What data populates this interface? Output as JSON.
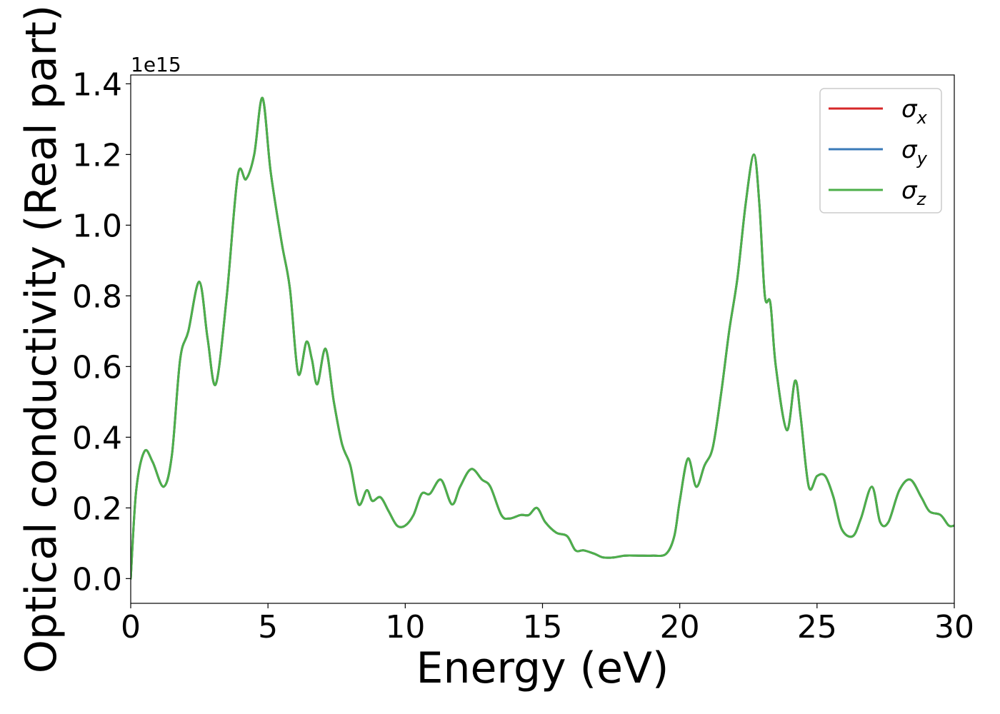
{
  "chart_data": {
    "type": "line",
    "title": "",
    "xlabel": "Energy (eV)",
    "ylabel": "Optical conductivity (Real part)",
    "y_offset_label": "1e15",
    "xlim": [
      0,
      30
    ],
    "ylim": [
      -0.07,
      1.425
    ],
    "x_ticks": [
      0,
      5,
      10,
      15,
      20,
      25,
      30
    ],
    "x_tick_labels": [
      "0",
      "5",
      "10",
      "15",
      "20",
      "25",
      "30"
    ],
    "y_ticks": [
      0.0,
      0.2,
      0.4,
      0.6,
      0.8,
      1.0,
      1.2,
      1.4
    ],
    "y_tick_labels": [
      "0.0",
      "0.2",
      "0.4",
      "0.6",
      "0.8",
      "1.0",
      "1.2",
      "1.4"
    ],
    "grid": false,
    "legend_position": "top-right",
    "series": [
      {
        "name": "σx",
        "symbol": "σ",
        "subscript": "x",
        "color": "#d62728",
        "x": [
          0,
          0.2,
          0.5,
          0.8,
          1.2,
          1.5,
          1.8,
          2.1,
          2.5,
          2.8,
          3.1,
          3.5,
          3.9,
          4.2,
          4.5,
          4.8,
          5.1,
          5.5,
          5.8,
          6.1,
          6.4,
          6.6,
          6.8,
          7.1,
          7.4,
          7.7,
          8.0,
          8.3,
          8.6,
          8.8,
          9.1,
          9.4,
          9.7,
          10.0,
          10.3,
          10.6,
          10.9,
          11.3,
          11.7,
          12.0,
          12.4,
          12.8,
          13.1,
          13.5,
          13.8,
          14.2,
          14.5,
          14.8,
          15.1,
          15.5,
          15.9,
          16.2,
          16.5,
          16.9,
          17.2,
          17.6,
          18.0,
          18.5,
          19.0,
          19.5,
          19.8,
          20.0,
          20.3,
          20.6,
          20.9,
          21.2,
          21.5,
          21.8,
          22.1,
          22.4,
          22.7,
          22.9,
          23.1,
          23.3,
          23.5,
          23.9,
          24.2,
          24.4,
          24.7,
          25.0,
          25.3,
          25.6,
          25.9,
          26.3,
          26.6,
          27.0,
          27.3,
          27.6,
          28.0,
          28.4,
          28.8,
          29.1,
          29.5,
          29.8,
          30.0
        ],
        "y": [
          0.0,
          0.25,
          0.36,
          0.33,
          0.26,
          0.35,
          0.62,
          0.7,
          0.84,
          0.68,
          0.55,
          0.8,
          1.14,
          1.13,
          1.2,
          1.36,
          1.15,
          0.95,
          0.82,
          0.58,
          0.67,
          0.62,
          0.55,
          0.65,
          0.5,
          0.38,
          0.32,
          0.21,
          0.25,
          0.22,
          0.23,
          0.19,
          0.15,
          0.15,
          0.18,
          0.24,
          0.24,
          0.28,
          0.21,
          0.26,
          0.31,
          0.28,
          0.26,
          0.18,
          0.17,
          0.18,
          0.18,
          0.2,
          0.16,
          0.13,
          0.12,
          0.08,
          0.08,
          0.07,
          0.06,
          0.06,
          0.065,
          0.065,
          0.065,
          0.07,
          0.12,
          0.22,
          0.34,
          0.26,
          0.32,
          0.37,
          0.52,
          0.7,
          0.85,
          1.06,
          1.2,
          1.06,
          0.8,
          0.78,
          0.6,
          0.42,
          0.56,
          0.46,
          0.26,
          0.29,
          0.29,
          0.23,
          0.14,
          0.12,
          0.17,
          0.26,
          0.16,
          0.16,
          0.25,
          0.28,
          0.23,
          0.19,
          0.18,
          0.15,
          0.15
        ]
      },
      {
        "name": "σy",
        "symbol": "σ",
        "subscript": "y",
        "color": "#3a7ab8",
        "x": [
          0,
          0.2,
          0.5,
          0.8,
          1.2,
          1.5,
          1.8,
          2.1,
          2.5,
          2.8,
          3.1,
          3.5,
          3.9,
          4.2,
          4.5,
          4.8,
          5.1,
          5.5,
          5.8,
          6.1,
          6.4,
          6.6,
          6.8,
          7.1,
          7.4,
          7.7,
          8.0,
          8.3,
          8.6,
          8.8,
          9.1,
          9.4,
          9.7,
          10.0,
          10.3,
          10.6,
          10.9,
          11.3,
          11.7,
          12.0,
          12.4,
          12.8,
          13.1,
          13.5,
          13.8,
          14.2,
          14.5,
          14.8,
          15.1,
          15.5,
          15.9,
          16.2,
          16.5,
          16.9,
          17.2,
          17.6,
          18.0,
          18.5,
          19.0,
          19.5,
          19.8,
          20.0,
          20.3,
          20.6,
          20.9,
          21.2,
          21.5,
          21.8,
          22.1,
          22.4,
          22.7,
          22.9,
          23.1,
          23.3,
          23.5,
          23.9,
          24.2,
          24.4,
          24.7,
          25.0,
          25.3,
          25.6,
          25.9,
          26.3,
          26.6,
          27.0,
          27.3,
          27.6,
          28.0,
          28.4,
          28.8,
          29.1,
          29.5,
          29.8,
          30.0
        ],
        "y": [
          0.0,
          0.25,
          0.36,
          0.33,
          0.26,
          0.35,
          0.62,
          0.7,
          0.84,
          0.68,
          0.55,
          0.8,
          1.14,
          1.13,
          1.2,
          1.36,
          1.15,
          0.95,
          0.82,
          0.58,
          0.67,
          0.62,
          0.55,
          0.65,
          0.5,
          0.38,
          0.32,
          0.21,
          0.25,
          0.22,
          0.23,
          0.19,
          0.15,
          0.15,
          0.18,
          0.24,
          0.24,
          0.28,
          0.21,
          0.26,
          0.31,
          0.28,
          0.26,
          0.18,
          0.17,
          0.18,
          0.18,
          0.2,
          0.16,
          0.13,
          0.12,
          0.08,
          0.08,
          0.07,
          0.06,
          0.06,
          0.065,
          0.065,
          0.065,
          0.07,
          0.12,
          0.22,
          0.34,
          0.26,
          0.32,
          0.37,
          0.52,
          0.7,
          0.85,
          1.06,
          1.2,
          1.06,
          0.8,
          0.78,
          0.6,
          0.42,
          0.56,
          0.46,
          0.26,
          0.29,
          0.29,
          0.23,
          0.14,
          0.12,
          0.17,
          0.26,
          0.16,
          0.16,
          0.25,
          0.28,
          0.23,
          0.19,
          0.18,
          0.15,
          0.15
        ]
      },
      {
        "name": "σz",
        "symbol": "σ",
        "subscript": "z",
        "color": "#4daf4a",
        "x": [
          0,
          0.2,
          0.5,
          0.8,
          1.2,
          1.5,
          1.8,
          2.1,
          2.5,
          2.8,
          3.1,
          3.5,
          3.9,
          4.2,
          4.5,
          4.8,
          5.1,
          5.5,
          5.8,
          6.1,
          6.4,
          6.6,
          6.8,
          7.1,
          7.4,
          7.7,
          8.0,
          8.3,
          8.6,
          8.8,
          9.1,
          9.4,
          9.7,
          10.0,
          10.3,
          10.6,
          10.9,
          11.3,
          11.7,
          12.0,
          12.4,
          12.8,
          13.1,
          13.5,
          13.8,
          14.2,
          14.5,
          14.8,
          15.1,
          15.5,
          15.9,
          16.2,
          16.5,
          16.9,
          17.2,
          17.6,
          18.0,
          18.5,
          19.0,
          19.5,
          19.8,
          20.0,
          20.3,
          20.6,
          20.9,
          21.2,
          21.5,
          21.8,
          22.1,
          22.4,
          22.7,
          22.9,
          23.1,
          23.3,
          23.5,
          23.9,
          24.2,
          24.4,
          24.7,
          25.0,
          25.3,
          25.6,
          25.9,
          26.3,
          26.6,
          27.0,
          27.3,
          27.6,
          28.0,
          28.4,
          28.8,
          29.1,
          29.5,
          29.8,
          30.0
        ],
        "y": [
          0.0,
          0.25,
          0.36,
          0.33,
          0.26,
          0.35,
          0.62,
          0.7,
          0.84,
          0.68,
          0.55,
          0.8,
          1.14,
          1.13,
          1.2,
          1.36,
          1.15,
          0.95,
          0.82,
          0.58,
          0.67,
          0.62,
          0.55,
          0.65,
          0.5,
          0.38,
          0.32,
          0.21,
          0.25,
          0.22,
          0.23,
          0.19,
          0.15,
          0.15,
          0.18,
          0.24,
          0.24,
          0.28,
          0.21,
          0.26,
          0.31,
          0.28,
          0.26,
          0.18,
          0.17,
          0.18,
          0.18,
          0.2,
          0.16,
          0.13,
          0.12,
          0.08,
          0.08,
          0.07,
          0.06,
          0.06,
          0.065,
          0.065,
          0.065,
          0.07,
          0.12,
          0.22,
          0.34,
          0.26,
          0.32,
          0.37,
          0.52,
          0.7,
          0.85,
          1.06,
          1.2,
          1.06,
          0.8,
          0.78,
          0.6,
          0.42,
          0.56,
          0.46,
          0.26,
          0.29,
          0.29,
          0.23,
          0.14,
          0.12,
          0.17,
          0.26,
          0.16,
          0.16,
          0.25,
          0.28,
          0.23,
          0.19,
          0.18,
          0.15,
          0.15
        ]
      }
    ]
  }
}
